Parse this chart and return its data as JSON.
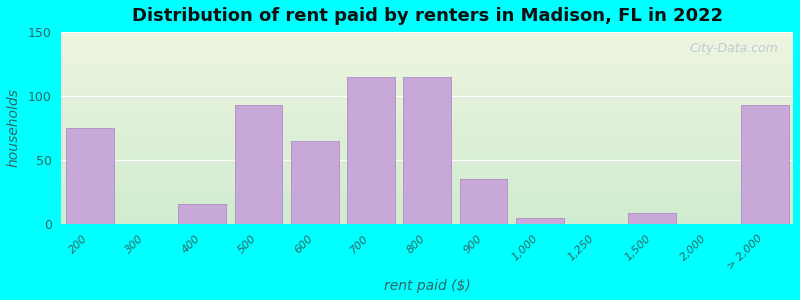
{
  "title": "Distribution of rent paid by renters in Madison, FL in 2022",
  "xlabel": "rent paid ($)",
  "ylabel": "households",
  "bar_color": "#c8a8d8",
  "bar_edge_color": "#b090c0",
  "background_outer": "#00ffff",
  "background_inner_top": "#f0f5e8",
  "background_inner_bottom": "#d8f0d8",
  "categories": [
    "200",
    "300",
    "400",
    "500",
    "600",
    "700",
    "800",
    "900",
    "1,000",
    "1,250",
    "1,500",
    "2,000",
    "> 2,000"
  ],
  "values": [
    75,
    0,
    15,
    93,
    65,
    115,
    115,
    35,
    4,
    0,
    8,
    0,
    93
  ],
  "ylim": [
    0,
    150
  ],
  "yticks": [
    0,
    50,
    100,
    150
  ],
  "watermark": "City-Data.com"
}
